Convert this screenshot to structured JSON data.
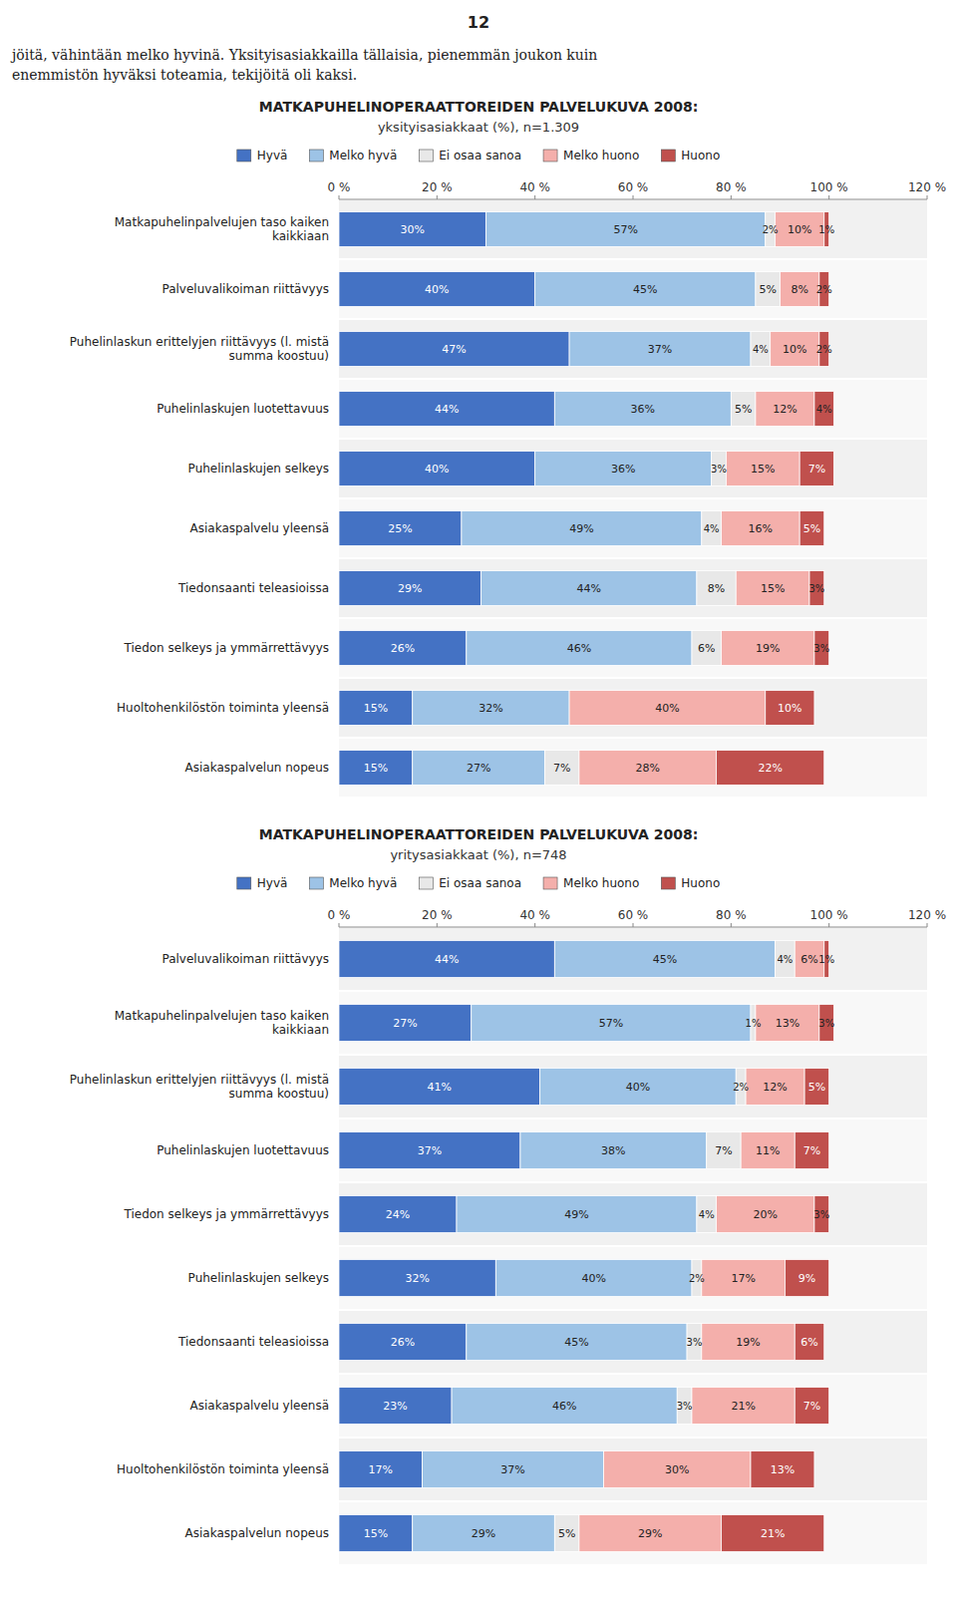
{
  "chart_data": [
    {
      "type": "bar",
      "orientation": "horizontal",
      "stacked": true,
      "data_labels": true,
      "grid": false,
      "annotations": [
        "12",
        "jöitä, vähintään melko hyvinä.  Yksityisasiakkailla tällaisia, pienemmän joukon kuin",
        "enemmistön hyväksi toteamia, tekijöitä oli kaksi."
      ],
      "title": "MATKAPUHELINOPERAATTOREIDEN PALVELUKUVA 2008:",
      "subtitle": "yksityisasiakkaat (%), n=1.309",
      "categories": [
        "Matkapuhelinpalvelujen taso kaiken\nkaikkiaan",
        "Palveluvalikoiman riittävyys",
        "Puhelinlaskun erittelyjen riittävyys (l. mistä\nsumma koostuu)",
        "Puhelinlaskujen luotettavuus",
        "Puhelinlaskujen selkeys",
        "Asiakaspalvelu yleensä",
        "Tiedonsaanti teleasioissa",
        "Tiedon selkeys ja ymmärrettävyys",
        "Huoltohenkilöstön toiminta yleensä",
        "Asiakaspalvelun nopeus"
      ],
      "xlim": [
        0,
        120
      ],
      "xticks": [
        {
          "value": 0,
          "label": "0 %"
        },
        {
          "value": 20,
          "label": "20 %"
        },
        {
          "value": 40,
          "label": "40 %"
        },
        {
          "value": 60,
          "label": "60 %"
        },
        {
          "value": 80,
          "label": "80 %"
        },
        {
          "value": 100,
          "label": "100 %"
        },
        {
          "value": 120,
          "label": "120 %"
        }
      ],
      "series": [
        {
          "name": "Hyvä",
          "color": "#4472C4",
          "values": [
            30,
            40,
            47,
            44,
            40,
            25,
            29,
            26,
            15,
            15
          ],
          "value_labels": [
            "30%",
            "40%",
            "47%",
            "44%",
            "40%",
            "25%",
            "29%",
            "26%",
            "15%",
            "15%"
          ]
        },
        {
          "name": "Melko hyvä",
          "color": "#9DC3E6",
          "values": [
            57,
            45,
            37,
            36,
            36,
            49,
            44,
            46,
            32,
            27
          ],
          "value_labels": [
            "57%",
            "45%",
            "37%",
            "36%",
            "36%",
            "49%",
            "44%",
            "46%",
            "32%",
            "27%"
          ]
        },
        {
          "name": "Ei osaa sanoa",
          "color": "#E8E8E8",
          "values": [
            2,
            5,
            4,
            5,
            3,
            4,
            8,
            6,
            0,
            7
          ],
          "value_labels": [
            "2%",
            "5%",
            "4%",
            "5%",
            "3%",
            "4%",
            "8%",
            "6%",
            null,
            "7%"
          ]
        },
        {
          "name": "Melko huono",
          "color": "#F4AFAB",
          "values": [
            10,
            8,
            10,
            12,
            15,
            16,
            15,
            19,
            40,
            28
          ],
          "value_labels": [
            "10%",
            "8%",
            "10%",
            "12%",
            "15%",
            "16%",
            "15%",
            "19%",
            "40%",
            "28%"
          ]
        },
        {
          "name": "Huono",
          "color": "#C0504D",
          "values": [
            1,
            2,
            2,
            4,
            7,
            5,
            3,
            3,
            10,
            22
          ],
          "value_labels": [
            "1%",
            "2%",
            "2%",
            "4%",
            "7%",
            "5%",
            "3%",
            "3%",
            "10%",
            "22%"
          ]
        }
      ]
    },
    {
      "type": "bar",
      "orientation": "horizontal",
      "stacked": true,
      "data_labels": true,
      "grid": false,
      "title": "MATKAPUHELINOPERAATTOREIDEN PALVELUKUVA 2008:",
      "subtitle": "yritysasiakkaat (%), n=748",
      "categories": [
        "Palveluvalikoiman riittävyys",
        "Matkapuhelinpalvelujen taso kaiken\nkaikkiaan",
        "Puhelinlaskun erittelyjen riittävyys (l. mistä\nsumma koostuu)",
        "Puhelinlaskujen luotettavuus",
        "Tiedon selkeys ja ymmärrettävyys",
        "Puhelinlaskujen selkeys",
        "Tiedonsaanti teleasioissa",
        "Asiakaspalvelu yleensä",
        "Huoltohenkilöstön toiminta yleensä",
        "Asiakaspalvelun nopeus"
      ],
      "xlim": [
        0,
        120
      ],
      "xticks": [
        {
          "value": 0,
          "label": "0 %"
        },
        {
          "value": 20,
          "label": "20 %"
        },
        {
          "value": 40,
          "label": "40 %"
        },
        {
          "value": 60,
          "label": "60 %"
        },
        {
          "value": 80,
          "label": "80 %"
        },
        {
          "value": 100,
          "label": "100 %"
        },
        {
          "value": 120,
          "label": "120 %"
        }
      ],
      "series": [
        {
          "name": "Hyvä",
          "color": "#4472C4",
          "values": [
            44,
            27,
            41,
            37,
            24,
            32,
            26,
            23,
            17,
            15
          ],
          "value_labels": [
            "44%",
            "27%",
            "41%",
            "37%",
            "24%",
            "32%",
            "26%",
            "23%",
            "17%",
            "15%"
          ]
        },
        {
          "name": "Melko hyvä",
          "color": "#9DC3E6",
          "values": [
            45,
            57,
            40,
            38,
            49,
            40,
            45,
            46,
            37,
            29
          ],
          "value_labels": [
            "45%",
            "57%",
            "40%",
            "38%",
            "49%",
            "40%",
            "45%",
            "46%",
            "37%",
            "29%"
          ]
        },
        {
          "name": "Ei osaa sanoa",
          "color": "#E8E8E8",
          "values": [
            4,
            1,
            2,
            7,
            4,
            2,
            3,
            3,
            0,
            5
          ],
          "value_labels": [
            "4%",
            "1%",
            "2%",
            "7%",
            "4%",
            "2%",
            "3%",
            "3%",
            null,
            "5%"
          ]
        },
        {
          "name": "Melko huono",
          "color": "#F4AFAB",
          "values": [
            6,
            13,
            12,
            11,
            20,
            17,
            19,
            21,
            30,
            29
          ],
          "value_labels": [
            "6%",
            "13%",
            "12%",
            "11%",
            "20%",
            "17%",
            "19%",
            "21%",
            "30%",
            "29%"
          ]
        },
        {
          "name": "Huono",
          "color": "#C0504D",
          "values": [
            1,
            3,
            5,
            7,
            3,
            9,
            6,
            7,
            13,
            21
          ],
          "value_labels": [
            "1%",
            "3%",
            "5%",
            "7%",
            "3%",
            "9%",
            "6%",
            "7%",
            "13%",
            "21%"
          ]
        }
      ]
    }
  ]
}
